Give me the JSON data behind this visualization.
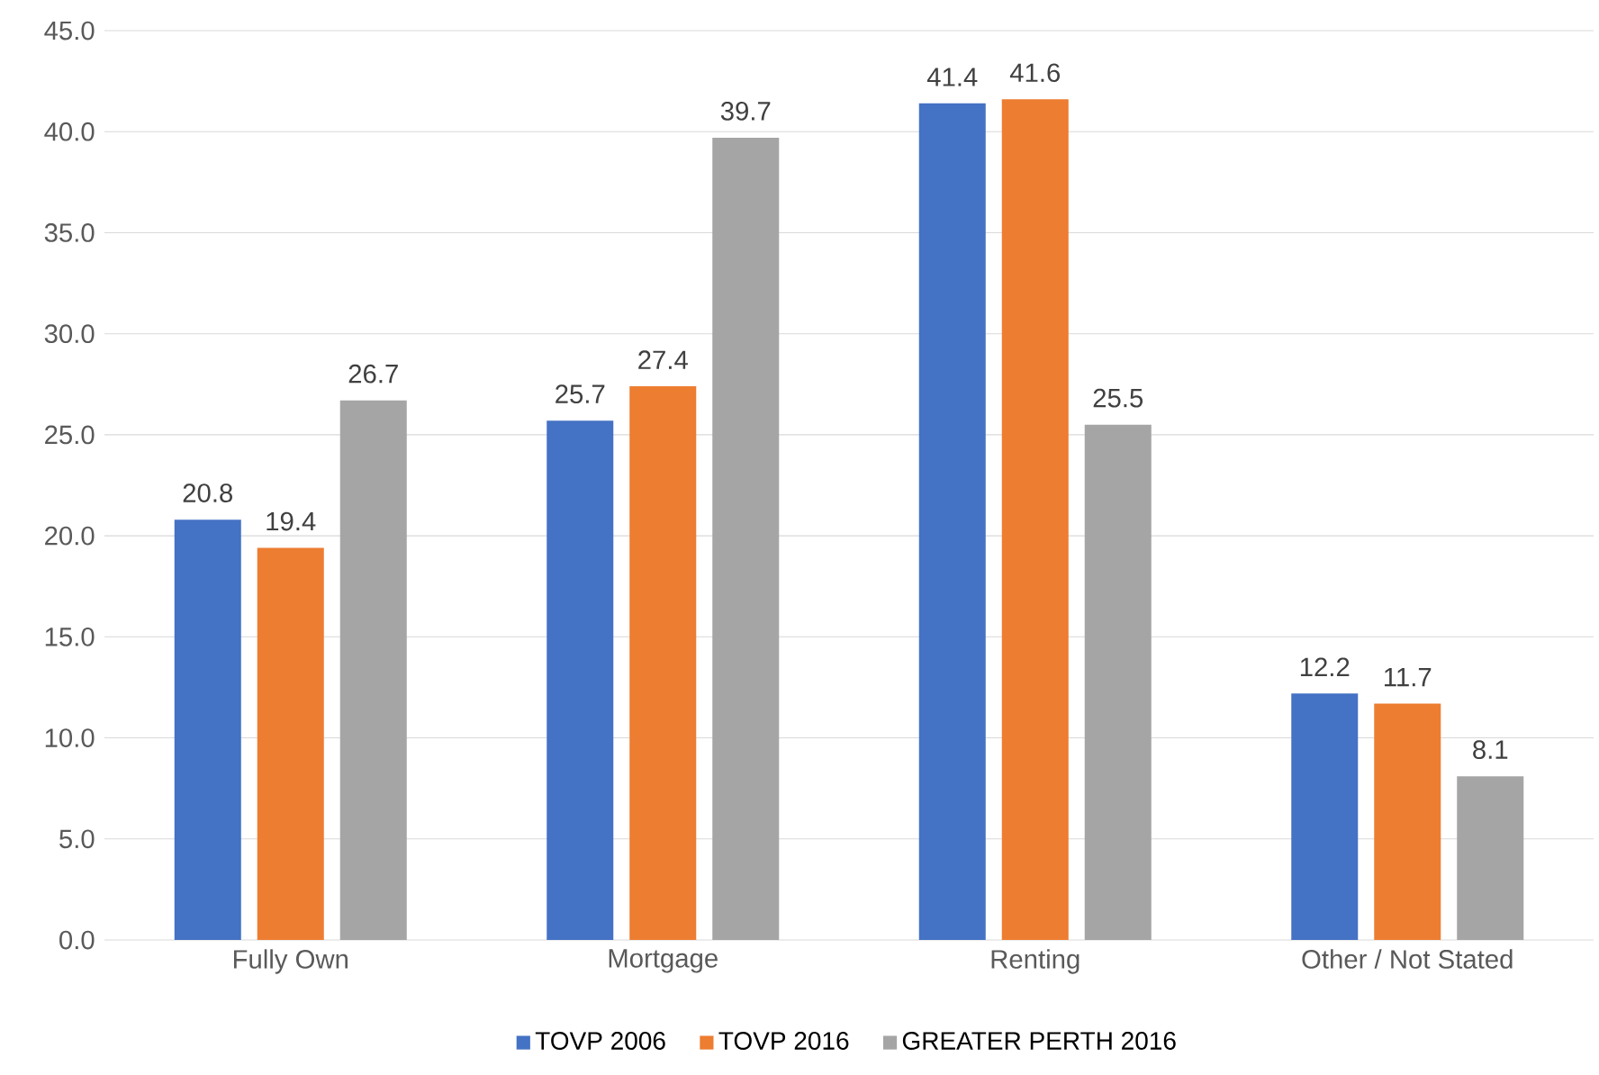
{
  "chart_data": {
    "type": "bar",
    "categories": [
      "Fully Own",
      "Mortgage",
      "Renting",
      "Other / Not Stated"
    ],
    "series": [
      {
        "name": "TOVP 2006",
        "color": "#4472c4",
        "values": [
          20.8,
          25.7,
          41.4,
          12.2
        ]
      },
      {
        "name": "TOVP 2016",
        "color": "#ed7d31",
        "values": [
          19.4,
          27.4,
          41.6,
          11.7
        ]
      },
      {
        "name": "GREATER PERTH 2016",
        "color": "#a5a5a5",
        "values": [
          26.7,
          39.7,
          25.5,
          8.1
        ]
      }
    ],
    "ylim": [
      0,
      45
    ],
    "yticks": [
      {
        "value": 0,
        "label": "0.0"
      },
      {
        "value": 5,
        "label": "5.0"
      },
      {
        "value": 10,
        "label": "10.0"
      },
      {
        "value": 15,
        "label": "15.0"
      },
      {
        "value": 20,
        "label": "20.0"
      },
      {
        "value": 25,
        "label": "25.0"
      },
      {
        "value": 30,
        "label": "30.0"
      },
      {
        "value": 35,
        "label": "35.0"
      },
      {
        "value": 40,
        "label": "40.0"
      },
      {
        "value": 45,
        "label": "45.0"
      }
    ],
    "grid": "y",
    "legend": "bottom",
    "data_labels": true
  }
}
